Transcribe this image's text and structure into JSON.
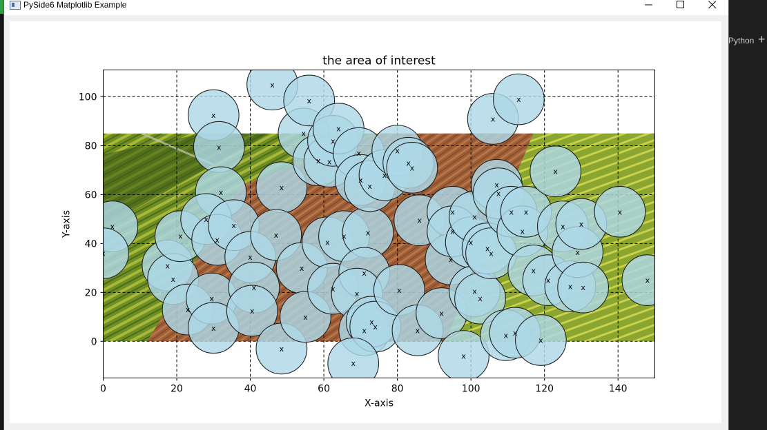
{
  "window": {
    "title": "PySide6 Matplotlib Example",
    "minimize_icon": "minimize-icon",
    "maximize_icon": "maximize-icon",
    "close_icon": "close-icon"
  },
  "background": {
    "terminal_tab": "Python",
    "add_icon": "plus-icon"
  },
  "chart_data": {
    "type": "scatter",
    "title": "the area of interest",
    "xlabel": "X-axis",
    "ylabel": "Y-axis",
    "xlim": [
      0,
      150
    ],
    "ylim": [
      -15,
      111
    ],
    "xticks": [
      0,
      20,
      40,
      60,
      80,
      100,
      120,
      140
    ],
    "yticks": [
      0,
      20,
      40,
      60,
      80,
      100
    ],
    "grid": true,
    "grid_style": "dashed",
    "background_image": {
      "description": "aerial farmland photo",
      "extent_x": [
        0,
        150
      ],
      "extent_y": [
        0,
        85
      ]
    },
    "marker": "x",
    "marker_color": "#000000",
    "circle_radius": 8.3,
    "circle_color": "#add8e6",
    "circle_alpha": 0.82,
    "edge_color": "#222222",
    "points": [
      [
        2.5,
        47
      ],
      [
        0,
        36
      ],
      [
        17.5,
        31
      ],
      [
        19,
        25.5
      ],
      [
        21,
        43
      ],
      [
        23,
        13
      ],
      [
        29.5,
        17.5
      ],
      [
        30,
        5.5
      ],
      [
        30,
        92.5
      ],
      [
        31.5,
        79.5
      ],
      [
        32,
        61
      ],
      [
        28,
        50
      ],
      [
        31,
        41.5
      ],
      [
        35.5,
        47.5
      ],
      [
        40,
        34.5
      ],
      [
        41,
        22
      ],
      [
        40.5,
        12.5
      ],
      [
        46,
        105
      ],
      [
        48.5,
        63
      ],
      [
        47,
        43.5
      ],
      [
        48.5,
        -3
      ],
      [
        54,
        30
      ],
      [
        55,
        10
      ],
      [
        54.5,
        85
      ],
      [
        56,
        98.5
      ],
      [
        58.5,
        74
      ],
      [
        61.5,
        73.5
      ],
      [
        61,
        40.5
      ],
      [
        62.5,
        21.5
      ],
      [
        62.5,
        82
      ],
      [
        64,
        87
      ],
      [
        65.5,
        43
      ],
      [
        69.5,
        77
      ],
      [
        70,
        66
      ],
      [
        72,
        44.5
      ],
      [
        71,
        28
      ],
      [
        69,
        19.5
      ],
      [
        71,
        4.5
      ],
      [
        73,
        8
      ],
      [
        72.5,
        63.5
      ],
      [
        74,
        6
      ],
      [
        68,
        -9
      ],
      [
        76.5,
        68
      ],
      [
        80,
        78
      ],
      [
        80.5,
        21
      ],
      [
        83,
        73
      ],
      [
        86,
        49.5
      ],
      [
        85.5,
        4.5
      ],
      [
        84,
        71
      ],
      [
        92,
        11.5
      ],
      [
        95,
        53
      ],
      [
        94.5,
        33.5
      ],
      [
        95,
        45
      ],
      [
        98,
        -6
      ],
      [
        100,
        40.5
      ],
      [
        101,
        51
      ],
      [
        101,
        20.5
      ],
      [
        102.5,
        17.5
      ],
      [
        104.5,
        38
      ],
      [
        105.5,
        36
      ],
      [
        106,
        91
      ],
      [
        107,
        64
      ],
      [
        107.5,
        60.5
      ],
      [
        109.5,
        2.5
      ],
      [
        111,
        53
      ],
      [
        112,
        3.5
      ],
      [
        114,
        45
      ],
      [
        115,
        53
      ],
      [
        117,
        29
      ],
      [
        119,
        0.5
      ],
      [
        121,
        25
      ],
      [
        123,
        69.5
      ],
      [
        125,
        47
      ],
      [
        127,
        22.5
      ],
      [
        129,
        36.5
      ],
      [
        130,
        48
      ],
      [
        130.5,
        22
      ],
      [
        140.5,
        53
      ],
      [
        148,
        25
      ],
      [
        113,
        99
      ]
    ]
  }
}
